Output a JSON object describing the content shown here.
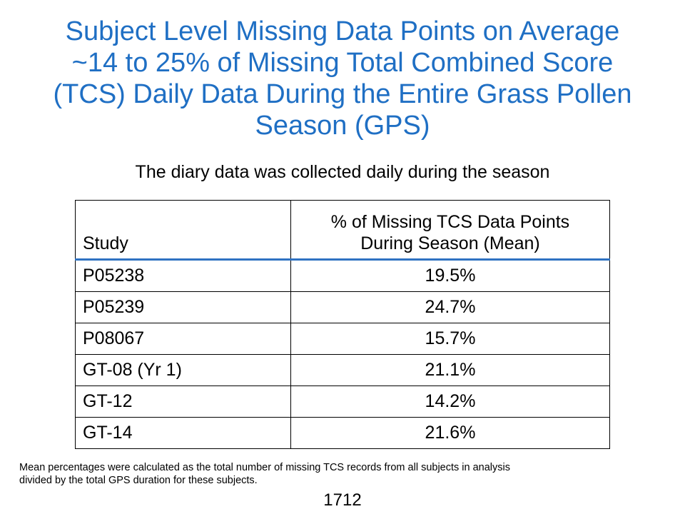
{
  "slide": {
    "title_lines": [
      "Subject Level Missing Data Points on Average",
      "~14 to 25% of Missing Total Combined Score",
      "(TCS) Daily Data During the Entire Grass Pollen",
      "Season (GPS)"
    ],
    "subtitle": "The diary data was collected daily during the season",
    "table": {
      "headers": {
        "study": "Study",
        "pct_line1": "% of Missing TCS Data Points",
        "pct_line2": "During Season (Mean)"
      },
      "rows": [
        {
          "study": "P05238",
          "pct": "19.5%"
        },
        {
          "study": "P05239",
          "pct": "24.7%"
        },
        {
          "study": "P08067",
          "pct": "15.7%"
        },
        {
          "study": "GT-08 (Yr 1)",
          "pct": "21.1%"
        },
        {
          "study": "GT-12",
          "pct": "14.2%"
        },
        {
          "study": "GT-14",
          "pct": "21.6%"
        }
      ]
    },
    "footnote_lines": [
      "Mean percentages were calculated as the total number of missing TCS records from all  subjects in analysis",
      "divided by the total GPS duration for these subjects."
    ],
    "page_number": "1712",
    "colors": {
      "title": "#1f6fc4",
      "header_rule": "#2f72c2"
    }
  }
}
